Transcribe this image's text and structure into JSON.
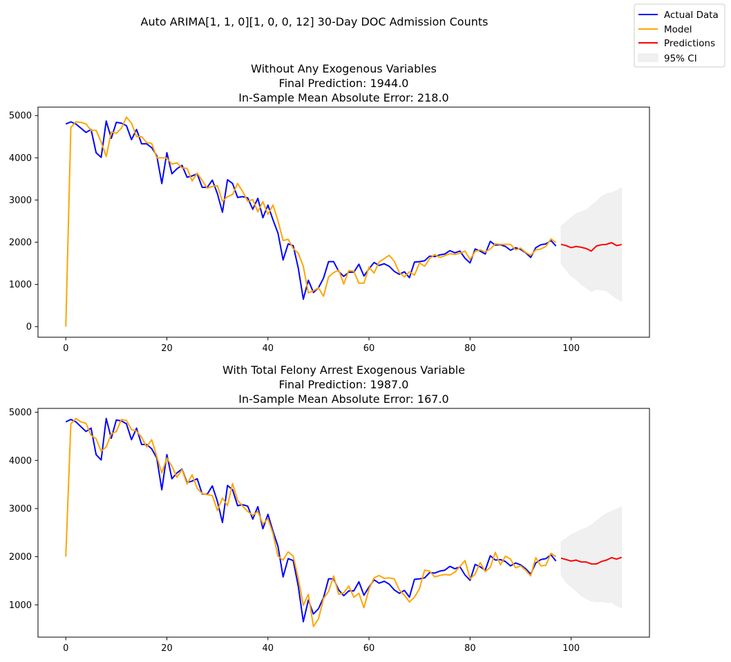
{
  "figure": {
    "suptitle": "Auto ARIMA[1, 1, 0][1, 0, 0, 12] 30-Day DOC Admission Counts",
    "legend": {
      "placement": "top-right",
      "entries": [
        {
          "label": "Actual Data",
          "color": "#0000ff",
          "kind": "line"
        },
        {
          "label": "Model",
          "color": "#ffa500",
          "kind": "line"
        },
        {
          "label": "Predictions",
          "color": "#ff0000",
          "kind": "line"
        },
        {
          "label": "95% CI",
          "color": "#f0f0f0",
          "kind": "patch"
        }
      ]
    }
  },
  "chart_data": [
    {
      "type": "line",
      "title_lines": [
        "Without Any Exogenous Variables",
        "Final Prediction: 1944.0",
        "In-Sample Mean Absolute Error: 218.0"
      ],
      "xlim": [
        -5.5,
        115.5
      ],
      "ylim": [
        -250,
        5200
      ],
      "xticks": [
        0,
        20,
        40,
        60,
        80,
        100
      ],
      "yticks": [
        0,
        1000,
        2000,
        3000,
        4000,
        5000
      ],
      "grid": false,
      "series": [
        {
          "name": "Actual Data",
          "color": "#0000ff",
          "x_start": 0,
          "values": [
            4800,
            4850,
            4800,
            4700,
            4600,
            4670,
            4120,
            4010,
            4870,
            4460,
            4840,
            4820,
            4760,
            4430,
            4670,
            4330,
            4330,
            4240,
            4050,
            3390,
            4120,
            3620,
            3740,
            3820,
            3540,
            3570,
            3620,
            3300,
            3300,
            3470,
            3150,
            2710,
            3480,
            3390,
            3060,
            3080,
            3050,
            2780,
            3040,
            2580,
            2880,
            2530,
            2210,
            1580,
            1960,
            1920,
            1390,
            650,
            1100,
            810,
            920,
            1150,
            1540,
            1540,
            1310,
            1190,
            1290,
            1290,
            1480,
            1200,
            1370,
            1520,
            1450,
            1490,
            1430,
            1310,
            1240,
            1300,
            1160,
            1530,
            1540,
            1560,
            1670,
            1660,
            1700,
            1720,
            1800,
            1750,
            1790,
            1620,
            1510,
            1840,
            1790,
            1720,
            2020,
            1930,
            1940,
            1900,
            1810,
            1870,
            1830,
            1750,
            1640,
            1870,
            1940,
            1960,
            2040,
            1910
          ]
        },
        {
          "name": "Model",
          "color": "#ffa500",
          "x_start": 0,
          "values": [
            0,
            4720,
            4850,
            4840,
            4800,
            4650,
            4650,
            4370,
            4030,
            4610,
            4580,
            4700,
            4960,
            4820,
            4500,
            4500,
            4360,
            4340,
            4000,
            4000,
            3990,
            3850,
            3880,
            3760,
            3750,
            3450,
            3640,
            3460,
            3280,
            3320,
            3340,
            2970,
            3080,
            3130,
            3390,
            3200,
            2970,
            3010,
            2720,
            2960,
            2660,
            2880,
            2500,
            2040,
            2070,
            1850,
            1740,
            1430,
            800,
            850,
            920,
            720,
            1180,
            1280,
            1340,
            1010,
            1330,
            1310,
            1030,
            1030,
            1410,
            1270,
            1530,
            1610,
            1690,
            1550,
            1280,
            1180,
            1300,
            1220,
            1510,
            1430,
            1610,
            1710,
            1640,
            1680,
            1730,
            1710,
            1740,
            1790,
            1590,
            1780,
            1820,
            1770,
            1840,
            1960,
            1950,
            1950,
            1950,
            1820,
            1860,
            1760,
            1690,
            1820,
            1840,
            1900,
            2080,
            1990
          ]
        },
        {
          "name": "Predictions",
          "color": "#ff0000",
          "x_start": 98,
          "values": [
            1950,
            1920,
            1870,
            1900,
            1880,
            1850,
            1790,
            1910,
            1940,
            1950,
            1990,
            1920,
            1944
          ]
        }
      ],
      "ci": {
        "label": "95% CI",
        "x_start": 98,
        "lower": [
          1500,
          1350,
          1200,
          1120,
          1000,
          920,
          830,
          890,
          870,
          850,
          750,
          670,
          600
        ],
        "upper": [
          2380,
          2480,
          2580,
          2680,
          2720,
          2760,
          2870,
          2960,
          3080,
          3150,
          3170,
          3220,
          3290
        ]
      }
    },
    {
      "type": "line",
      "title_lines": [
        "With Total Felony Arrest Exogenous Variable",
        "Final Prediction: 1987.0",
        "In-Sample Mean Absolute Error: 167.0"
      ],
      "xlim": [
        -5.5,
        115.5
      ],
      "ylim": [
        330,
        5080
      ],
      "xticks": [
        0,
        20,
        40,
        60,
        80,
        100
      ],
      "yticks": [
        1000,
        2000,
        3000,
        4000,
        5000
      ],
      "grid": false,
      "series": [
        {
          "name": "Actual Data",
          "color": "#0000ff",
          "x_start": 0,
          "values": [
            4800,
            4850,
            4800,
            4700,
            4600,
            4670,
            4120,
            4010,
            4870,
            4460,
            4840,
            4820,
            4760,
            4430,
            4670,
            4330,
            4330,
            4240,
            4050,
            3390,
            4120,
            3620,
            3740,
            3820,
            3540,
            3570,
            3620,
            3300,
            3300,
            3470,
            3150,
            2710,
            3480,
            3390,
            3060,
            3080,
            3050,
            2780,
            3040,
            2580,
            2880,
            2530,
            2210,
            1580,
            1960,
            1920,
            1390,
            650,
            1100,
            810,
            920,
            1150,
            1540,
            1540,
            1310,
            1190,
            1290,
            1290,
            1480,
            1200,
            1370,
            1520,
            1450,
            1490,
            1430,
            1310,
            1240,
            1300,
            1160,
            1530,
            1540,
            1560,
            1670,
            1660,
            1700,
            1720,
            1800,
            1750,
            1790,
            1620,
            1510,
            1840,
            1790,
            1720,
            2020,
            1930,
            1940,
            1900,
            1810,
            1870,
            1830,
            1750,
            1640,
            1870,
            1940,
            1960,
            2040,
            1910
          ]
        },
        {
          "name": "Model",
          "color": "#ffa500",
          "x_start": 0,
          "values": [
            2000,
            4760,
            4870,
            4800,
            4770,
            4520,
            4450,
            4190,
            4280,
            4550,
            4600,
            4850,
            4830,
            4640,
            4610,
            4480,
            4280,
            4430,
            4080,
            3740,
            4050,
            3880,
            3650,
            3810,
            3510,
            3700,
            3420,
            3310,
            3290,
            3270,
            2960,
            3220,
            3060,
            3520,
            3170,
            3050,
            2940,
            2860,
            2940,
            2680,
            2790,
            2480,
            2010,
            1930,
            2100,
            2010,
            1550,
            990,
            1220,
            550,
            710,
            1130,
            1280,
            1600,
            1220,
            1250,
            1390,
            1160,
            1240,
            940,
            1330,
            1560,
            1610,
            1550,
            1560,
            1540,
            1310,
            1200,
            1060,
            1160,
            1340,
            1720,
            1700,
            1580,
            1610,
            1630,
            1620,
            1680,
            1800,
            1920,
            1540,
            1640,
            1880,
            1690,
            1780,
            2090,
            1830,
            2010,
            1950,
            1770,
            1810,
            1720,
            1600,
            1980,
            1810,
            1820,
            2070,
            2000
          ]
        },
        {
          "name": "Predictions",
          "color": "#ff0000",
          "x_start": 98,
          "values": [
            1970,
            1940,
            1910,
            1930,
            1890,
            1890,
            1850,
            1850,
            1900,
            1930,
            1980,
            1950,
            1987
          ]
        }
      ],
      "ci": {
        "label": "95% CI",
        "x_start": 98,
        "lower": [
          1630,
          1470,
          1370,
          1290,
          1190,
          1130,
          1080,
          1060,
          1070,
          1050,
          1060,
          980,
          940
        ],
        "upper": [
          2310,
          2380,
          2460,
          2510,
          2560,
          2600,
          2660,
          2740,
          2830,
          2900,
          2940,
          2990,
          3040
        ]
      }
    }
  ]
}
